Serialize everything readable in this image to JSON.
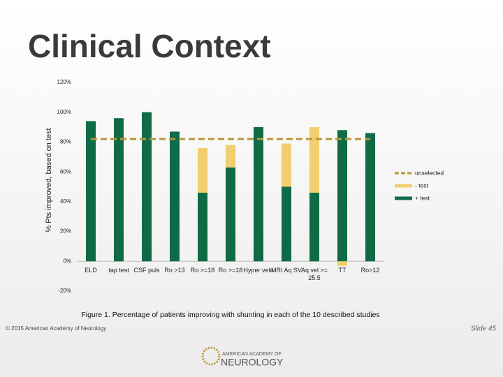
{
  "header": {
    "title": "Clinical Context"
  },
  "chart_data": {
    "type": "stacked-bar",
    "y_label": "% Pts improved, based on test",
    "caption": "Figure 1. Percentage of patients improving with shunting in each of the 10 described studies",
    "categories": [
      "ELD",
      "tap test",
      "CSF puls",
      "Ro >13",
      "Ro >=18",
      "Ro >=18",
      "Hyper velo",
      "MRI Aq SV",
      "Aq vel >= 25.5",
      "TT",
      "Ro>12"
    ],
    "series": [
      {
        "name": "+ test",
        "color": "#0f6b45",
        "values": [
          94,
          96,
          100,
          87,
          46,
          63,
          90,
          50,
          46,
          88,
          86
        ]
      },
      {
        "name": "- test",
        "color": "#f1cf6e",
        "values": [
          null,
          null,
          null,
          null,
          30,
          15,
          null,
          29,
          44,
          -3,
          null
        ]
      },
      {
        "name": "unselected",
        "color": "#b8963a",
        "kind": "dashed-line",
        "values": [
          82,
          82,
          82,
          82,
          82,
          82,
          82,
          82,
          82,
          82,
          82
        ]
      }
    ],
    "ylim": [
      -20,
      120
    ],
    "yticks": [
      {
        "value": -20,
        "label": "-20%"
      },
      {
        "value": 0,
        "label": "0%"
      },
      {
        "value": 20,
        "label": "20%"
      },
      {
        "value": 40,
        "label": "40%"
      },
      {
        "value": 60,
        "label": "60%"
      },
      {
        "value": 80,
        "label": "80%"
      },
      {
        "value": 100,
        "label": "100%"
      },
      {
        "value": 120,
        "label": "120%"
      }
    ],
    "legend": "right"
  },
  "footer": {
    "copyright": "© 2015 American Academy of Neurology",
    "slide": "Slide 45",
    "logo_top": "AMERICAN ACADEMY OF",
    "logo_bottom": "NEUROLOGY"
  }
}
